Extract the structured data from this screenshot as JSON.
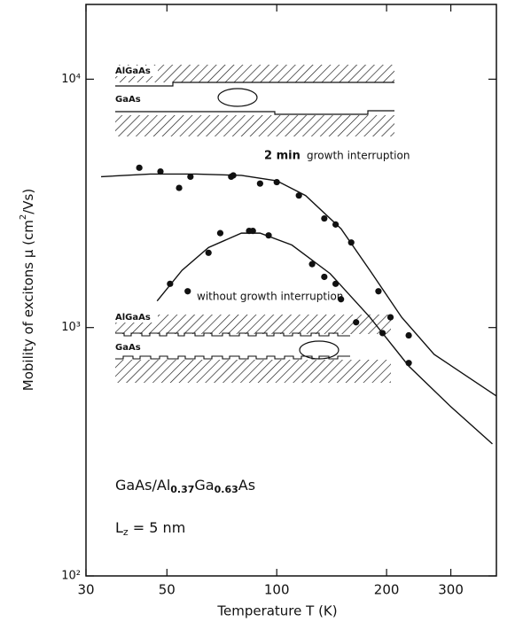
{
  "chart_data": {
    "type": "scatter",
    "xlabel": "Temperature  T  (K)",
    "ylabel": [
      "Mobility of excitons  μ  (cm",
      "2",
      "/Vs)"
    ],
    "xscale": "log",
    "yscale": "log",
    "xlim": [
      30,
      400
    ],
    "ylim": [
      100,
      20000
    ],
    "xticks": [
      30,
      50,
      100,
      200,
      300
    ],
    "yticks": [
      {
        "value": 100,
        "label": "10²"
      },
      {
        "value": 1000,
        "label": "10³"
      },
      {
        "value": 10000,
        "label": "10⁴"
      }
    ],
    "color": "#111111",
    "series": [
      {
        "mode": "markers",
        "x": [
          42,
          48,
          54,
          58,
          75,
          76,
          90,
          100,
          115,
          135,
          145,
          160,
          190,
          205,
          230
        ],
        "values": [
          4400,
          4250,
          3650,
          4050,
          4050,
          4100,
          3800,
          3850,
          3400,
          2750,
          2600,
          2200,
          1400,
          1100,
          930
        ]
      },
      {
        "mode": "markers",
        "x": [
          51,
          57,
          65,
          70,
          84,
          86,
          95,
          125,
          135,
          145,
          150,
          165,
          195,
          230
        ],
        "values": [
          1500,
          1400,
          2000,
          2400,
          2450,
          2450,
          2350,
          1800,
          1600,
          1500,
          1300,
          1050,
          950,
          720
        ]
      },
      {
        "mode": "lines",
        "x": [
          33,
          45,
          60,
          80,
          100,
          120,
          150,
          180,
          220,
          270,
          400
        ],
        "values": [
          4050,
          4150,
          4150,
          4100,
          3900,
          3400,
          2500,
          1700,
          1100,
          780,
          530
        ]
      },
      {
        "mode": "lines",
        "x": [
          47,
          55,
          65,
          80,
          90,
          110,
          140,
          180,
          230,
          300,
          390
        ],
        "values": [
          1280,
          1700,
          2100,
          2400,
          2400,
          2150,
          1650,
          1100,
          700,
          480,
          340
        ]
      }
    ],
    "annotations": [
      "2 min",
      "growth  interruption",
      "without  growth  interruption"
    ],
    "inset_labels": [
      "AlGaAs",
      "GaAs",
      "AlGaAs",
      "GaAs"
    ],
    "composition": [
      "GaAs/Al",
      "0.37",
      "Ga",
      "0.63",
      "As"
    ],
    "well_width": [
      "L",
      "z",
      "  =  5  nm"
    ]
  }
}
